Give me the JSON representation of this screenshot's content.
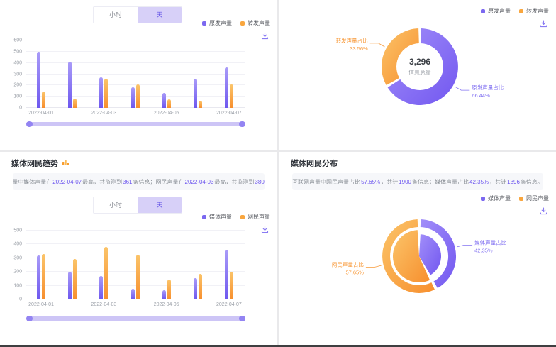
{
  "colors": {
    "purple": "#6e58ef",
    "purple_light": "#a99bf8",
    "purple_label": "#8474f2",
    "orange": "#f78f2e",
    "orange_light": "#fbc469",
    "orange_label": "#f89a3a",
    "tab_active_bg": "#d7d0f8",
    "tab_active_text": "#5948e6",
    "info_highlight": "#7b68f0"
  },
  "time_tabs": [
    {
      "id": "hour",
      "label": "小时",
      "active": false
    },
    {
      "id": "day",
      "label": "天",
      "active": true
    }
  ],
  "panels": {
    "tl": {
      "legend": [
        {
          "label": "原发声量",
          "color": "#7b68f0"
        },
        {
          "label": "转发声量",
          "color": "#f9a63e"
        }
      ],
      "toolbox": "download"
    },
    "tr": {
      "legend": [
        {
          "label": "原发声量",
          "color": "#7b68f0"
        },
        {
          "label": "转发声量",
          "color": "#f9a63e"
        }
      ],
      "toolbox": "download"
    },
    "bl": {
      "title": "媒体网民趋势",
      "info": [
        {
          "t": "互联网声量中媒体声量在"
        },
        {
          "t": "2022-04-07",
          "hl": true
        },
        {
          "t": "最高，共监测到"
        },
        {
          "t": "361",
          "hl": true
        },
        {
          "t": "条信息；网民声量在"
        },
        {
          "t": "2022-04-03",
          "hl": true
        },
        {
          "t": "最高，共监测到"
        },
        {
          "t": "380",
          "hl": true
        },
        {
          "t": "条信息。"
        }
      ],
      "legend": [
        {
          "label": "媒体声量",
          "color": "#7b68f0"
        },
        {
          "label": "网民声量",
          "color": "#f9a63e"
        }
      ],
      "toolbox": "download"
    },
    "br": {
      "title": "媒体网民分布",
      "info": [
        {
          "t": "互联网声量中网民声量占比"
        },
        {
          "t": "57.65%",
          "hl": true
        },
        {
          "t": "，共计"
        },
        {
          "t": "1900",
          "hl": true
        },
        {
          "t": "条信息；媒体声量占比"
        },
        {
          "t": "42.35%",
          "hl": true
        },
        {
          "t": "，共计"
        },
        {
          "t": "1396",
          "hl": true
        },
        {
          "t": "条信息。"
        }
      ],
      "legend": [
        {
          "label": "媒体声量",
          "color": "#7b68f0"
        },
        {
          "label": "网民声量",
          "color": "#f9a63e"
        }
      ],
      "toolbox": "download"
    }
  },
  "chart_data": [
    {
      "id": "origin-trend-bar",
      "type": "bar",
      "title": "",
      "categories": [
        "2022-04-01",
        "2022-04-02",
        "2022-04-03",
        "2022-04-04",
        "2022-04-05",
        "2022-04-06",
        "2022-04-07"
      ],
      "x_tick_labels_shown": [
        "2022-04-01",
        "2022-04-03",
        "2022-04-05",
        "2022-04-07"
      ],
      "series": [
        {
          "name": "原发声量",
          "color": "#6e58ef",
          "color_light": "#a99bf8",
          "values": [
            500,
            410,
            275,
            185,
            130,
            260,
            360
          ]
        },
        {
          "name": "转发声量",
          "color": "#f78f2e",
          "color_light": "#fbc469",
          "values": [
            143,
            80,
            260,
            208,
            76,
            66,
            208
          ]
        }
      ],
      "ylim": [
        0,
        600
      ],
      "ytick_step": 100,
      "grid": true,
      "legend_position": "top-right"
    },
    {
      "id": "origin-dist-pie",
      "type": "pie",
      "style": "donut",
      "center_value": "3,296",
      "center_label": "信息总量",
      "slices": [
        {
          "name": "原发声量",
          "label": "原发声量占比",
          "pct": 66.44,
          "pct_label": "66.44%",
          "color": "#7257f0",
          "color_light": "#a18ef9",
          "label_color": "#8474f2"
        },
        {
          "name": "转发声量",
          "label": "转发声量占比",
          "pct": 33.56,
          "pct_label": "33.56%",
          "color": "#f78f2e",
          "color_light": "#fbc469",
          "label_color": "#f89a3a"
        }
      ],
      "legend_position": "top-right"
    },
    {
      "id": "media-trend-bar",
      "type": "bar",
      "title": "媒体网民趋势",
      "categories": [
        "2022-04-01",
        "2022-04-02",
        "2022-04-03",
        "2022-04-04",
        "2022-04-05",
        "2022-04-06",
        "2022-04-07"
      ],
      "x_tick_labels_shown": [
        "2022-04-01",
        "2022-04-03",
        "2022-04-05",
        "2022-04-07"
      ],
      "series": [
        {
          "name": "媒体声量",
          "color": "#6e58ef",
          "color_light": "#a99bf8",
          "values": [
            320,
            200,
            170,
            80,
            65,
            155,
            361
          ]
        },
        {
          "name": "网民声量",
          "color": "#f78f2e",
          "color_light": "#fbc469",
          "values": [
            330,
            295,
            380,
            325,
            145,
            185,
            200
          ]
        }
      ],
      "ylim": [
        0,
        500
      ],
      "ytick_step": 100,
      "grid": true,
      "legend_position": "top-right"
    },
    {
      "id": "media-dist-pie",
      "type": "pie",
      "style": "rose",
      "title": "媒体网民分布",
      "slices": [
        {
          "name": "媒体声量",
          "label": "媒体声量占比",
          "pct": 42.35,
          "pct_label": "42.35%",
          "color": "#7257f0",
          "color_light": "#a18ef9",
          "label_color": "#8474f2"
        },
        {
          "name": "网民声量",
          "label": "网民声量占比",
          "pct": 57.65,
          "pct_label": "57.65%",
          "color": "#f78f2e",
          "color_light": "#fbc469",
          "label_color": "#f89a3a"
        }
      ],
      "legend_position": "top-right"
    }
  ]
}
